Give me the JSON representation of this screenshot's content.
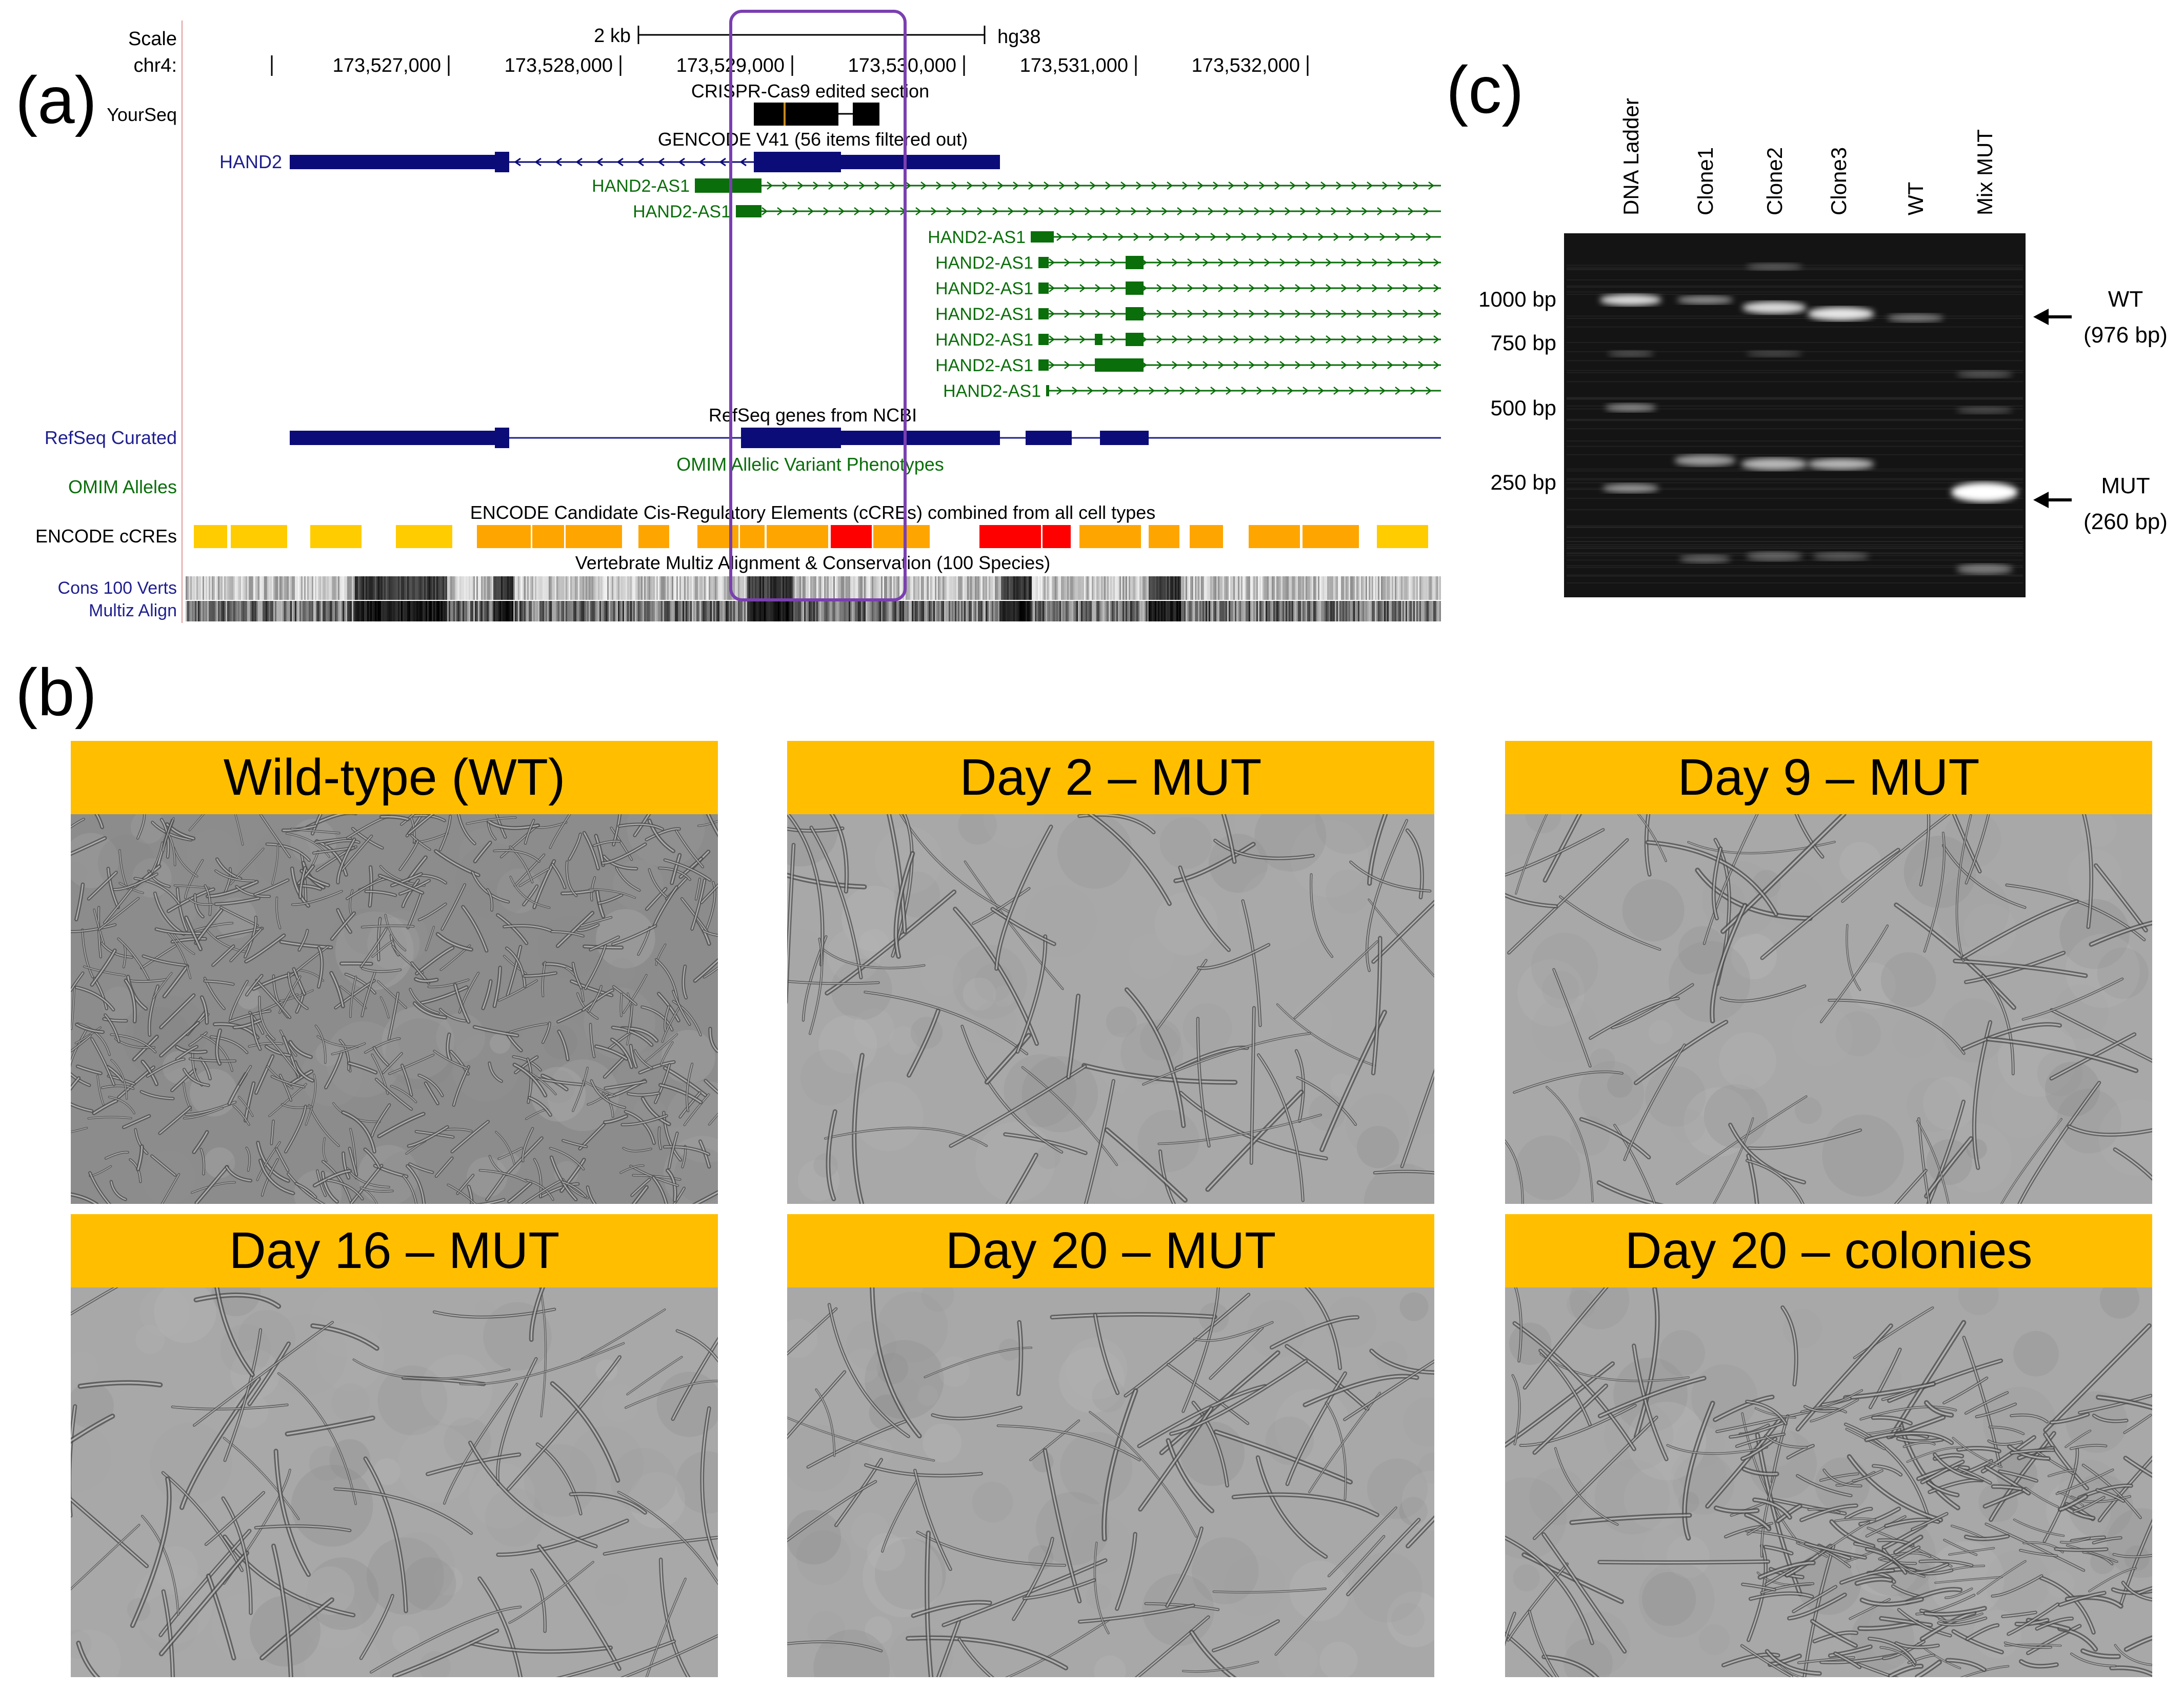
{
  "panel_letters": {
    "a": "(a)",
    "b": "(b)",
    "c": "(c)"
  },
  "browser": {
    "scale_label": "Scale",
    "scale_value": "2 kb",
    "assembly": "hg38",
    "chrom_label": "chr4:",
    "positions": [
      "173,527,000",
      "173,528,000",
      "173,529,000",
      "173,530,000",
      "173,531,000",
      "173,532,000"
    ],
    "yourseq_label": "YourSeq",
    "crispr_label": "CRISPR-Cas9 edited section",
    "gencode_label": "GENCODE V41 (56 items filtered out)",
    "hand2_label": "HAND2",
    "as1_label": "HAND2-AS1",
    "refseq_title": "RefSeq genes from NCBI",
    "refseq_label": "RefSeq Curated",
    "omim_title": "OMIM Allelic Variant Phenotypes",
    "omim_label": "OMIM Alleles",
    "encode_title": "ENCODE Candidate Cis-Regulatory Elements (cCREs) combined from all cell types",
    "encode_label": "ENCODE cCREs",
    "cons_title": "Vertebrate Multiz Alignment & Conservation (100 Species)",
    "cons_label": "Cons 100 Verts",
    "multiz_label": "Multiz Align",
    "colors": {
      "hand2": "#0c0c78",
      "as1": "#0a6e0a",
      "label_blue": "#1f1f8f",
      "ccre_yellow": "#ffcc00",
      "ccre_orange": "#ffa500",
      "ccre_red": "#ff0000",
      "highlight": "#7a3fb0"
    }
  },
  "gel": {
    "lanes": [
      "DNA Ladder",
      "Clone1",
      "Clone2",
      "Clone3",
      "WT",
      "Mix MUT"
    ],
    "ladder": [
      "1000 bp",
      "750 bp",
      "500 bp",
      "250 bp"
    ],
    "wt_label": "WT",
    "wt_size": "(976 bp)",
    "mut_label": "MUT",
    "mut_size": "(260 bp)"
  },
  "photos": [
    {
      "title": "Wild-type (WT)",
      "density": "dense"
    },
    {
      "title": "Day 2 – MUT",
      "density": "sparse"
    },
    {
      "title": "Day 9 – MUT",
      "density": "sparse"
    },
    {
      "title": "Day 16 – MUT",
      "density": "sparse"
    },
    {
      "title": "Day 20 – MUT",
      "density": "sparse"
    },
    {
      "title": "Day 20 – colonies",
      "density": "mixed"
    }
  ]
}
